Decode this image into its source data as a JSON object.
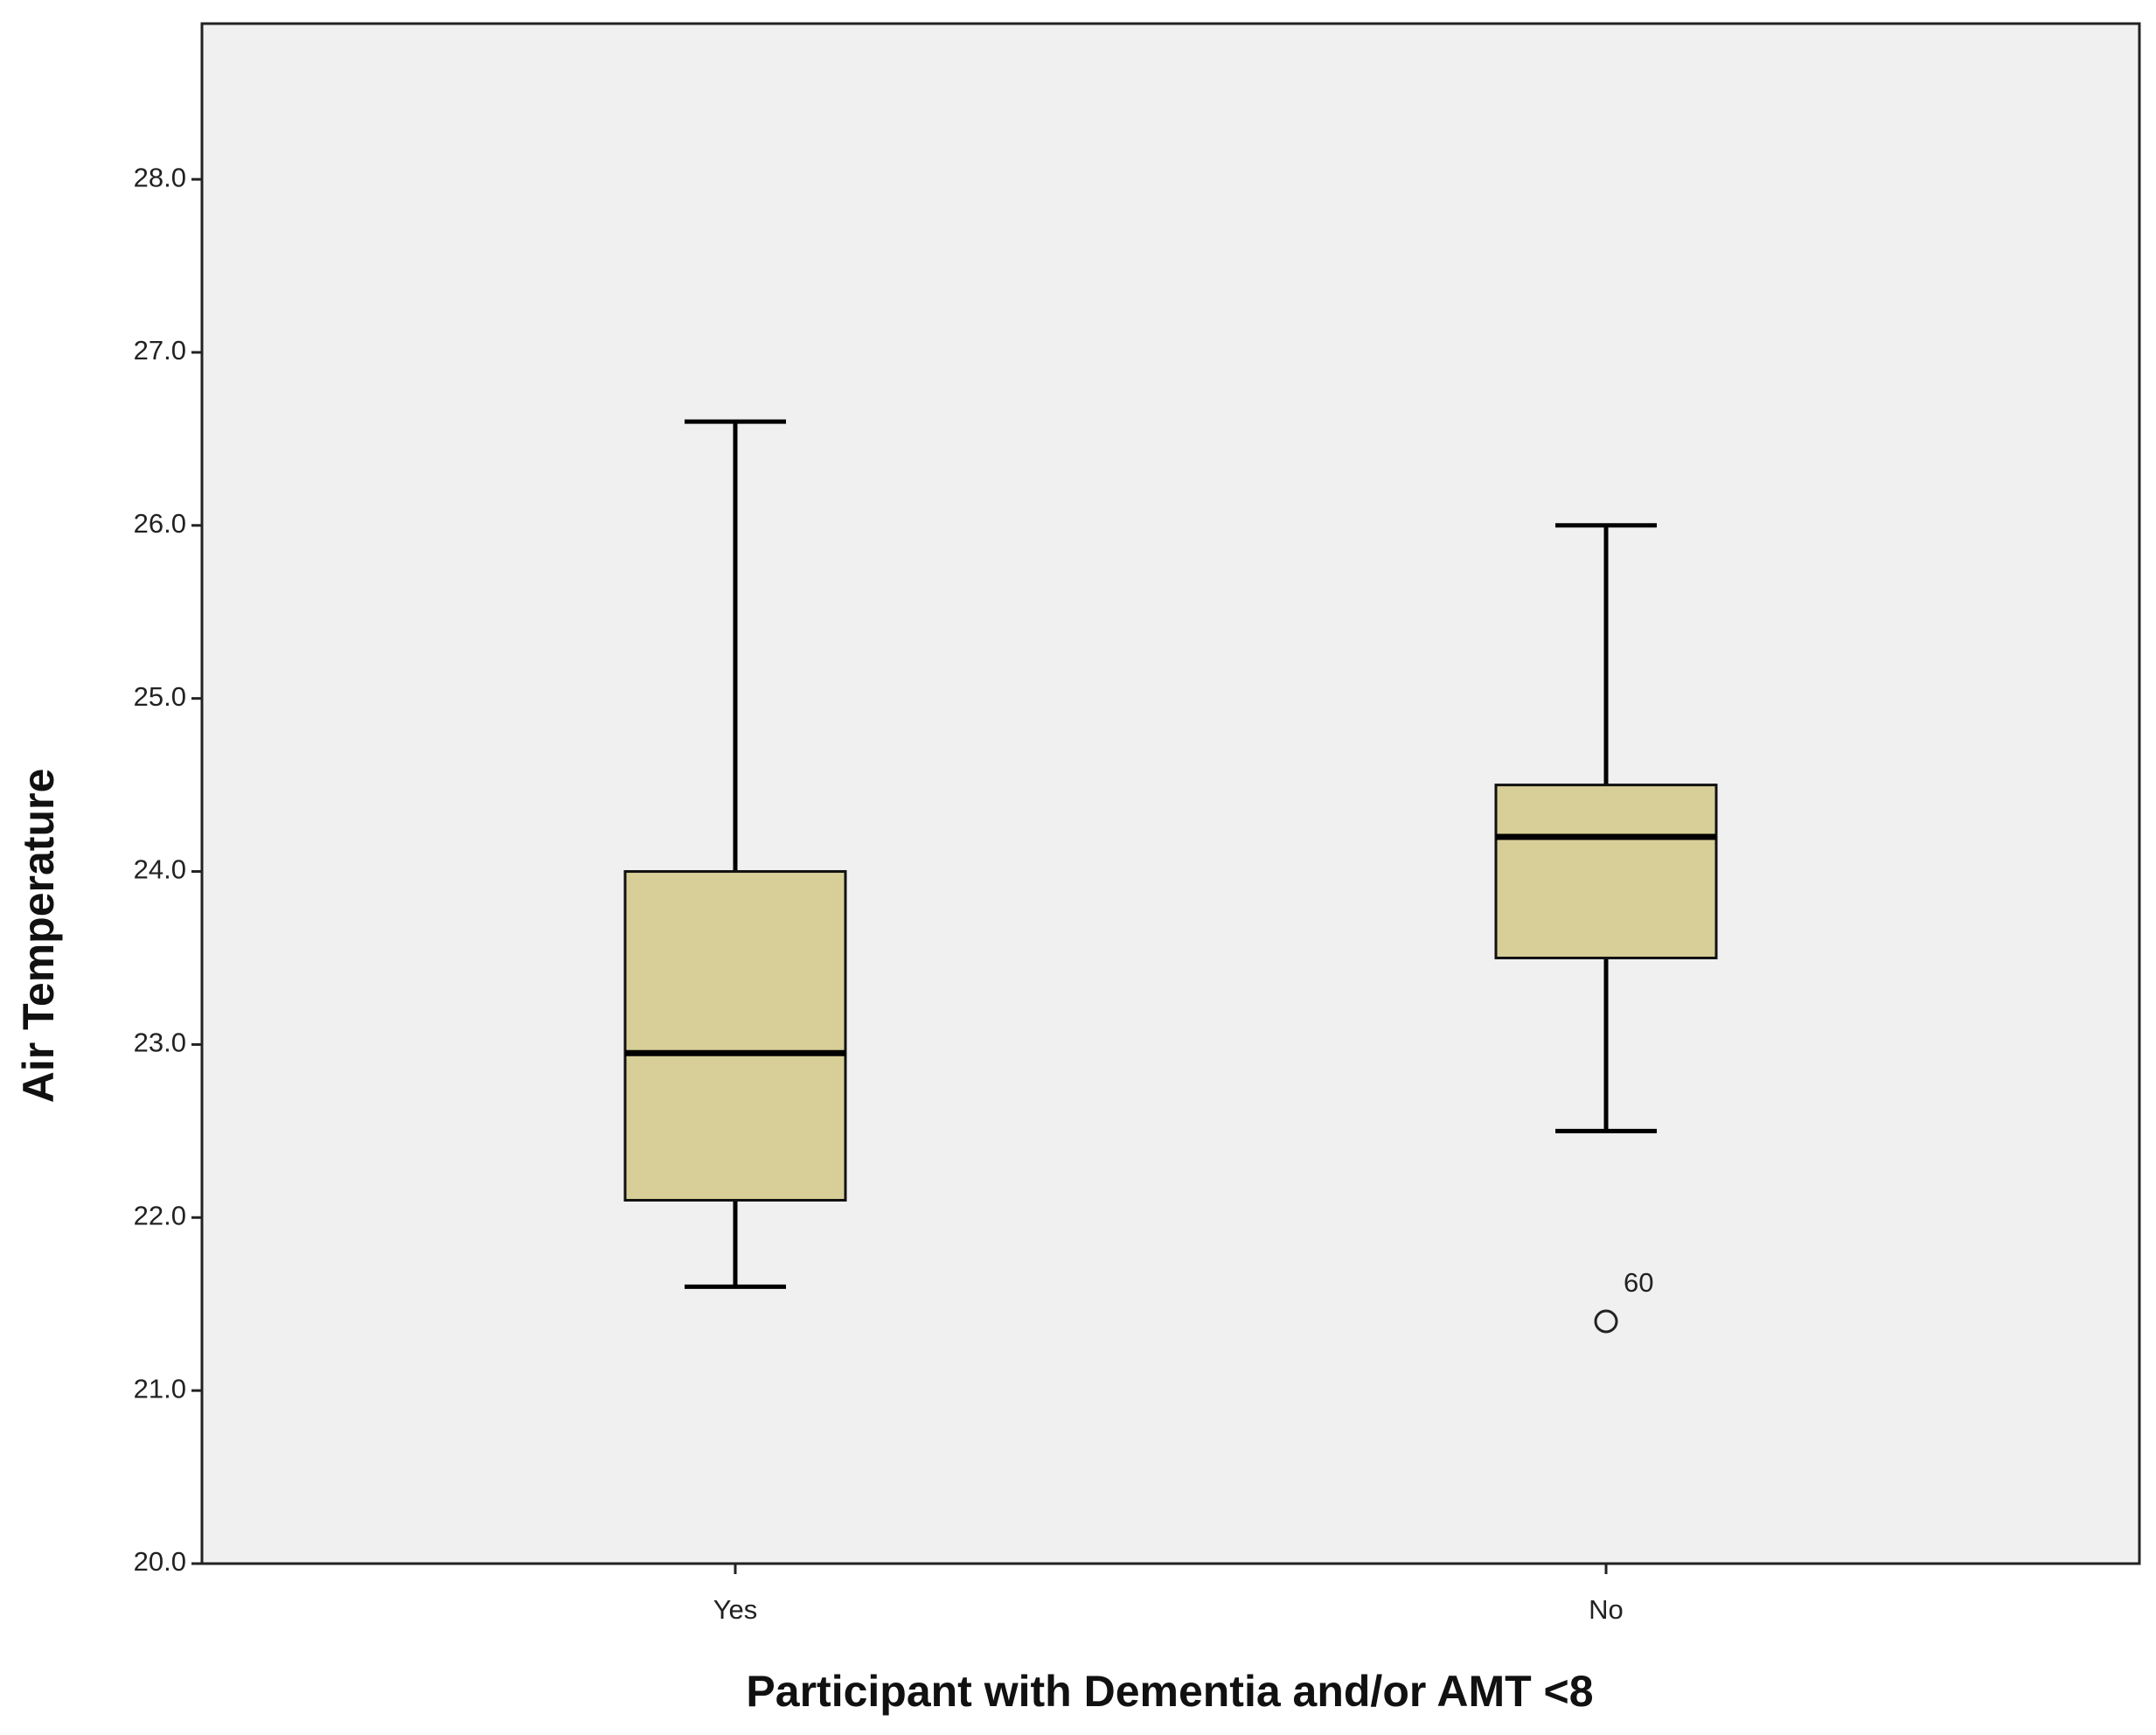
{
  "chart_data": {
    "type": "box",
    "x_label": "Participant with Dementia and/or AMT <8",
    "y_label": "Air Temperature",
    "categories": [
      "Yes",
      "No"
    ],
    "color": "#d7cf97",
    "background": "#f0f0f0",
    "ylim": [
      20,
      28.9
    ],
    "yticks": [
      {
        "value": 20,
        "label": "20.0"
      },
      {
        "value": 21,
        "label": "21.0"
      },
      {
        "value": 22,
        "label": "22.0"
      },
      {
        "value": 23,
        "label": "23.0"
      },
      {
        "value": 24,
        "label": "24.0"
      },
      {
        "value": 25,
        "label": "25.0"
      },
      {
        "value": 26,
        "label": "26.0"
      },
      {
        "value": 27,
        "label": "27.0"
      },
      {
        "value": 28,
        "label": "28.0"
      }
    ],
    "boxes": [
      {
        "whisker_low": 21.6,
        "q1": 22.1,
        "median": 22.95,
        "q3": 24.0,
        "whisker_high": 26.6,
        "outliers": []
      },
      {
        "whisker_low": 22.5,
        "q1": 23.5,
        "median": 24.2,
        "q3": 24.5,
        "whisker_high": 26.0,
        "outliers": [
          {
            "value": 21.4,
            "id": "60"
          }
        ]
      }
    ]
  }
}
